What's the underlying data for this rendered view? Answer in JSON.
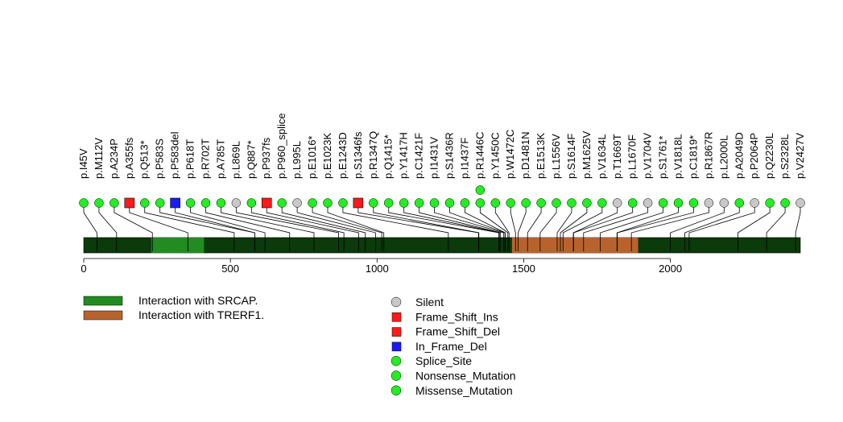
{
  "chart_data": {
    "type": "lollipop",
    "protein_length": 2443,
    "axis": {
      "ticks": [
        0,
        500,
        1000,
        1500,
        2000
      ],
      "range": [
        0,
        2443
      ]
    },
    "backbone_color": "#0b3a0b",
    "domains": [
      {
        "name": "Interaction with SRCAP.",
        "start": 230,
        "end": 410,
        "color": "#228b22"
      },
      {
        "name": "Interaction with TRERF1.",
        "start": 1460,
        "end": 1890,
        "color": "#b8632e"
      }
    ],
    "mutations": [
      {
        "label": "p.I45V",
        "pos": 45,
        "type": "Missense_Mutation"
      },
      {
        "label": "p.M112V",
        "pos": 112,
        "type": "Missense_Mutation"
      },
      {
        "label": "p.A234P",
        "pos": 234,
        "type": "Missense_Mutation"
      },
      {
        "label": "p.A355fs",
        "pos": 355,
        "type": "Frame_Shift_Del"
      },
      {
        "label": "p.Q513*",
        "pos": 513,
        "type": "Nonsense_Mutation"
      },
      {
        "label": "p.P583S",
        "pos": 583,
        "type": "Missense_Mutation"
      },
      {
        "label": "p.P583del",
        "pos": 583,
        "type": "In_Frame_Del"
      },
      {
        "label": "p.P618T",
        "pos": 618,
        "type": "Missense_Mutation"
      },
      {
        "label": "p.R702T",
        "pos": 702,
        "type": "Missense_Mutation"
      },
      {
        "label": "p.A785T",
        "pos": 785,
        "type": "Missense_Mutation"
      },
      {
        "label": "p.L869L",
        "pos": 869,
        "type": "Silent"
      },
      {
        "label": "p.Q887*",
        "pos": 887,
        "type": "Nonsense_Mutation"
      },
      {
        "label": "p.P937fs",
        "pos": 937,
        "type": "Frame_Shift_Del"
      },
      {
        "label": "p.P960_splice",
        "pos": 960,
        "type": "Splice_Site"
      },
      {
        "label": "p.L995L",
        "pos": 995,
        "type": "Silent"
      },
      {
        "label": "p.E1016*",
        "pos": 1016,
        "type": "Nonsense_Mutation"
      },
      {
        "label": "p.E1023K",
        "pos": 1023,
        "type": "Missense_Mutation"
      },
      {
        "label": "p.E1243D",
        "pos": 1243,
        "type": "Missense_Mutation"
      },
      {
        "label": "p.S1346fs",
        "pos": 1346,
        "type": "Frame_Shift_Del"
      },
      {
        "label": "p.R1347Q",
        "pos": 1347,
        "type": "Missense_Mutation"
      },
      {
        "label": "p.Q1415*",
        "pos": 1415,
        "type": "Nonsense_Mutation"
      },
      {
        "label": "p.Y1417H",
        "pos": 1417,
        "type": "Missense_Mutation"
      },
      {
        "label": "p.C1421F",
        "pos": 1421,
        "type": "Missense_Mutation"
      },
      {
        "label": "p.I1431V",
        "pos": 1431,
        "type": "Missense_Mutation"
      },
      {
        "label": "p.S1436R",
        "pos": 1436,
        "type": "Missense_Mutation"
      },
      {
        "label": "p.I1437F",
        "pos": 1437,
        "type": "Missense_Mutation"
      },
      {
        "label": "p.R1446C",
        "pos": 1446,
        "type": "Missense_Mutation",
        "stack": 2
      },
      {
        "label": "p.Y1450C",
        "pos": 1450,
        "type": "Missense_Mutation"
      },
      {
        "label": "p.W1472C",
        "pos": 1472,
        "type": "Missense_Mutation"
      },
      {
        "label": "p.D1481N",
        "pos": 1481,
        "type": "Missense_Mutation"
      },
      {
        "label": "p.E1513K",
        "pos": 1513,
        "type": "Missense_Mutation"
      },
      {
        "label": "p.L1556V",
        "pos": 1556,
        "type": "Missense_Mutation"
      },
      {
        "label": "p.S1614F",
        "pos": 1614,
        "type": "Missense_Mutation"
      },
      {
        "label": "p.M1625V",
        "pos": 1625,
        "type": "Missense_Mutation"
      },
      {
        "label": "p.V1634L",
        "pos": 1634,
        "type": "Missense_Mutation"
      },
      {
        "label": "p.T1669T",
        "pos": 1669,
        "type": "Silent"
      },
      {
        "label": "p.L1670F",
        "pos": 1670,
        "type": "Missense_Mutation"
      },
      {
        "label": "p.V1704V",
        "pos": 1704,
        "type": "Silent"
      },
      {
        "label": "p.S1761*",
        "pos": 1761,
        "type": "Nonsense_Mutation"
      },
      {
        "label": "p.V1818L",
        "pos": 1818,
        "type": "Missense_Mutation"
      },
      {
        "label": "p.C1819*",
        "pos": 1819,
        "type": "Nonsense_Mutation"
      },
      {
        "label": "p.R1867R",
        "pos": 1867,
        "type": "Silent"
      },
      {
        "label": "p.L2000L",
        "pos": 2000,
        "type": "Silent"
      },
      {
        "label": "p.A2049D",
        "pos": 2049,
        "type": "Missense_Mutation"
      },
      {
        "label": "p.P2064P",
        "pos": 2064,
        "type": "Silent"
      },
      {
        "label": "p.Q2230L",
        "pos": 2230,
        "type": "Missense_Mutation"
      },
      {
        "label": "p.S2328L",
        "pos": 2328,
        "type": "Missense_Mutation"
      },
      {
        "label": "p.V2427V",
        "pos": 2427,
        "type": "Silent"
      }
    ],
    "legend_domains": [
      {
        "label": "Interaction with SRCAP.",
        "color": "#228b22"
      },
      {
        "label": "Interaction with TRERF1.",
        "color": "#b8632e"
      }
    ],
    "legend_mutations": [
      {
        "label": "Silent",
        "shape": "circle",
        "color": "#c8c8c8"
      },
      {
        "label": "Frame_Shift_Ins",
        "shape": "square",
        "color": "#ff1a1a"
      },
      {
        "label": "Frame_Shift_Del",
        "shape": "square",
        "color": "#ff1a1a"
      },
      {
        "label": "In_Frame_Del",
        "shape": "square",
        "color": "#1a1aff"
      },
      {
        "label": "Splice_Site",
        "shape": "circle",
        "color": "#22ee22"
      },
      {
        "label": "Nonsense_Mutation",
        "shape": "circle",
        "color": "#22ee22"
      },
      {
        "label": "Missense_Mutation",
        "shape": "circle",
        "color": "#22ee22"
      }
    ],
    "type_colors": {
      "Silent": "#c8c8c8",
      "Frame_Shift_Ins": "#ff1a1a",
      "Frame_Shift_Del": "#ff1a1a",
      "In_Frame_Del": "#1a1aff",
      "Splice_Site": "#22ee22",
      "Nonsense_Mutation": "#22ee22",
      "Missense_Mutation": "#22ee22"
    },
    "square_types": [
      "Frame_Shift_Ins",
      "Frame_Shift_Del",
      "In_Frame_Del"
    ]
  }
}
